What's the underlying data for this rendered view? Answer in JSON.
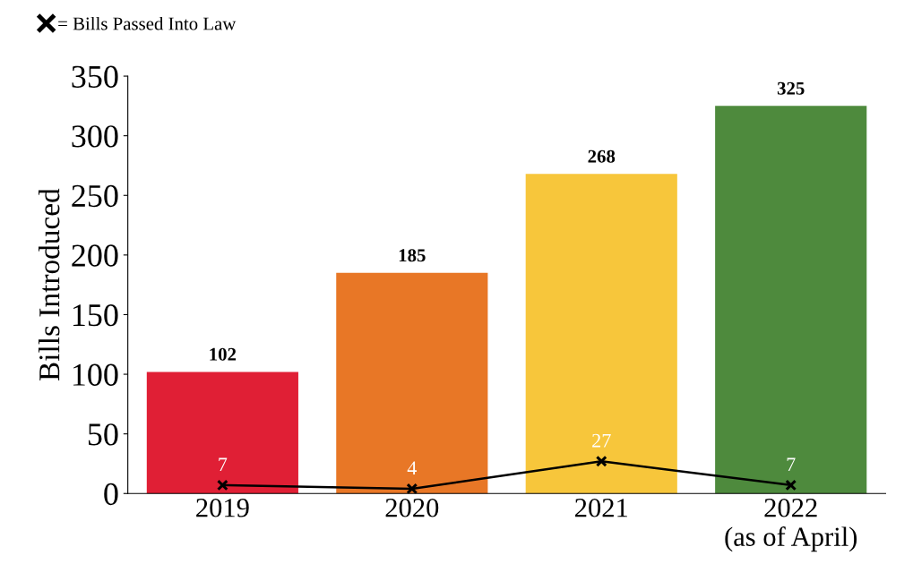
{
  "chart_data": {
    "type": "bar",
    "ylabel": "Bills Introduced",
    "categories": [
      "2019",
      "2020",
      "2021",
      "2022\n(as of April)"
    ],
    "series": [
      {
        "colors": [
          "#e01f35",
          "#e87726",
          "#f7c63b",
          "#4e8a3d"
        ],
        "values": [
          102,
          185,
          268,
          325
        ]
      },
      {
        "type": "line",
        "name": "= Bills Passed Into Law",
        "color": "#000000",
        "marker": "cross",
        "values": [
          7,
          4,
          27,
          7
        ]
      }
    ],
    "ylim": [
      0,
      350
    ],
    "yticks": [
      0,
      50,
      100,
      150,
      200,
      250,
      300,
      350
    ],
    "data_labels": true,
    "legend": "top left",
    "grid": false
  }
}
